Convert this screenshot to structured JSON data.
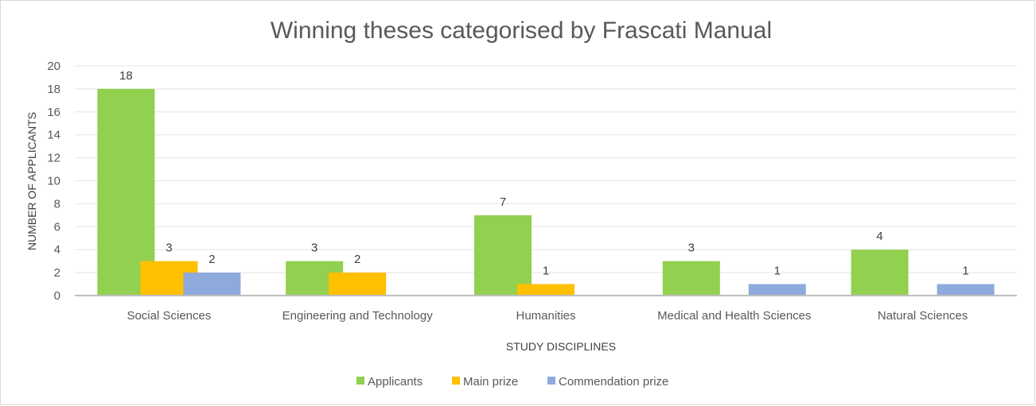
{
  "chart_data": {
    "type": "bar",
    "title": "Winning theses categorised by Frascati Manual",
    "xlabel": "STUDY DISCIPLINES",
    "ylabel": "NUMBER OF APPLICANTS",
    "ylim": [
      0,
      20
    ],
    "yticks": [
      0,
      2,
      4,
      6,
      8,
      10,
      12,
      14,
      16,
      18,
      20
    ],
    "grid": true,
    "legend_position": "bottom",
    "categories": [
      "Social Sciences",
      "Engineering  and Technology",
      "Humanities",
      "Medical  and  Health  Sciences",
      "Natural  Sciences"
    ],
    "series": [
      {
        "name": "Applicants",
        "color": "#92d050",
        "values": [
          18,
          3,
          7,
          3,
          4
        ]
      },
      {
        "name": "Main prize",
        "color": "#ffc000",
        "values": [
          3,
          2,
          1,
          0,
          0
        ]
      },
      {
        "name": "Commendation prize",
        "color": "#8eaadb",
        "values": [
          2,
          0,
          0,
          1,
          1
        ]
      }
    ]
  }
}
